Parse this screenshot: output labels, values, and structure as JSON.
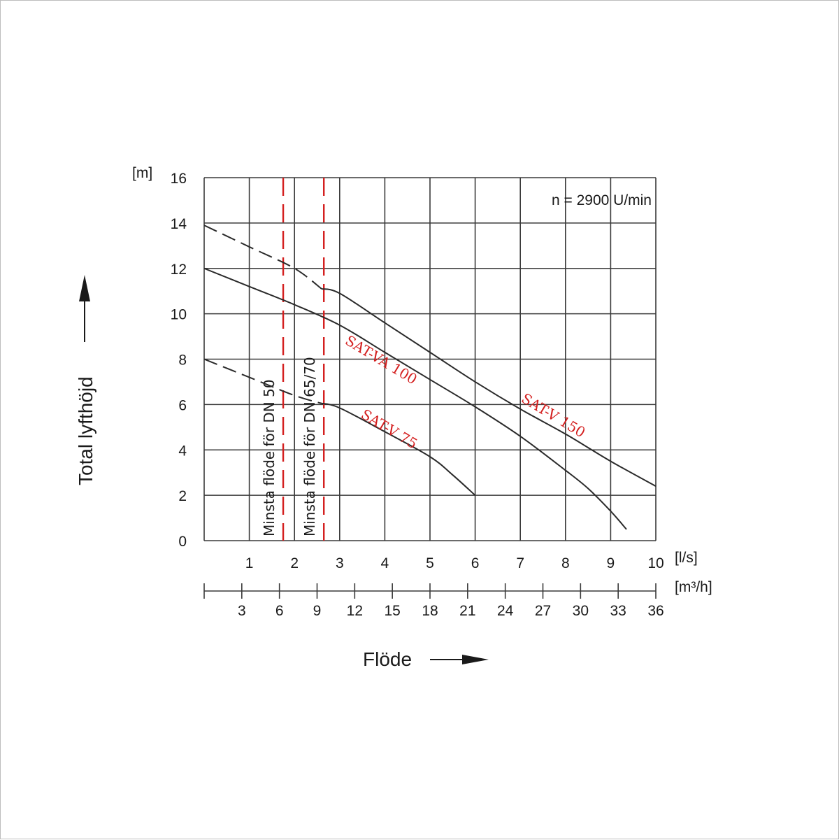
{
  "chart_data": {
    "type": "line",
    "ylabel": "Total lyfthöjd",
    "xlabel": "Flöde",
    "y_unit": "[m]",
    "x_unit": "[l/s]",
    "x2_unit": "[m³/h]",
    "ylim": [
      0,
      16
    ],
    "xlim": [
      0,
      10
    ],
    "y_ticks": [
      0,
      2,
      4,
      6,
      8,
      10,
      12,
      14,
      16
    ],
    "x_ticks": [
      1,
      2,
      3,
      4,
      5,
      6,
      7,
      8,
      9,
      10
    ],
    "x2_ticks": [
      3,
      6,
      9,
      12,
      15,
      18,
      21,
      24,
      27,
      30,
      33,
      36
    ],
    "x2_per_x": 3.6,
    "grid": true,
    "speed_note": "n = 2900 U/min",
    "accent_color": "#d42020",
    "series": [
      {
        "name": "SAT-V 150",
        "dashed_until": 2.6,
        "x": [
          0,
          1,
          2,
          2.6,
          3,
          4,
          5,
          6,
          7,
          8,
          9,
          10
        ],
        "y": [
          13.9,
          12.95,
          12.0,
          11.1,
          10.9,
          9.6,
          8.3,
          7.0,
          5.8,
          4.7,
          3.5,
          2.4
        ]
      },
      {
        "name": "SAT-VA 100",
        "x": [
          0,
          1,
          2,
          3,
          4,
          5,
          6,
          7,
          8,
          8.5,
          9,
          9.35
        ],
        "y": [
          12.0,
          11.2,
          10.4,
          9.5,
          8.3,
          7.1,
          5.9,
          4.6,
          3.1,
          2.3,
          1.3,
          0.5
        ]
      },
      {
        "name": "SAT-V 75",
        "dashed_until": 2.6,
        "x": [
          0,
          1,
          2,
          2.6,
          3,
          4,
          5,
          5.5,
          6
        ],
        "y": [
          8.0,
          7.2,
          6.4,
          6.05,
          5.85,
          4.8,
          3.7,
          2.9,
          2.0
        ]
      }
    ],
    "vertical_markers": [
      {
        "x": 1.75,
        "label": "Minsta flöde för DN 50"
      },
      {
        "x": 2.65,
        "label": "Minsta flöde för DN 65/70"
      }
    ]
  }
}
